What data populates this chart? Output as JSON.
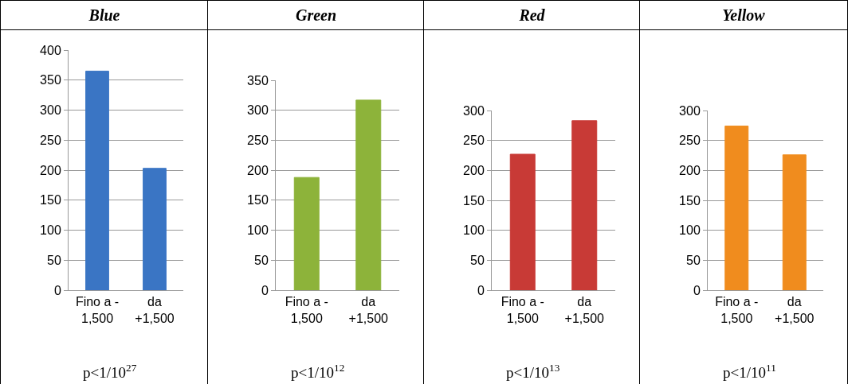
{
  "chart_data": [
    {
      "type": "bar",
      "title": "Blue",
      "categories": [
        "Fino a -\n1,500",
        "da\n+1,500"
      ],
      "values": [
        365,
        203
      ],
      "color": "#3a75c4",
      "ylim": [
        0,
        400
      ],
      "yticks": [
        0,
        50,
        100,
        150,
        200,
        250,
        300,
        350,
        400
      ],
      "grid": "y",
      "annotations": [
        "p<1/10$^{27}$"
      ]
    },
    {
      "type": "bar",
      "title": "Green",
      "categories": [
        "Fino a -\n1,500",
        "da\n+1,500"
      ],
      "values": [
        188,
        317
      ],
      "color": "#8db33a",
      "ylim": [
        0,
        350
      ],
      "yticks": [
        0,
        50,
        100,
        150,
        200,
        250,
        300,
        350
      ],
      "grid": "y",
      "annotations": [
        "p<1/10$^{12}$"
      ]
    },
    {
      "type": "bar",
      "title": "Red",
      "categories": [
        "Fino a -\n1,500",
        "da\n+1,500"
      ],
      "values": [
        227,
        283
      ],
      "color": "#c83a36",
      "ylim": [
        0,
        300
      ],
      "yticks": [
        0,
        50,
        100,
        150,
        200,
        250,
        300
      ],
      "grid": "y",
      "annotations": [
        "p<1/10$^{13}$"
      ]
    },
    {
      "type": "bar",
      "title": "Yellow",
      "categories": [
        "Fino a -\n1,500",
        "da\n+1,500"
      ],
      "values": [
        274,
        226
      ],
      "color": "#f08c1e",
      "ylim": [
        0,
        300
      ],
      "yticks": [
        0,
        50,
        100,
        150,
        200,
        250,
        300
      ],
      "grid": "y",
      "annotations": [
        "p<1/10$^{11}$"
      ]
    }
  ]
}
